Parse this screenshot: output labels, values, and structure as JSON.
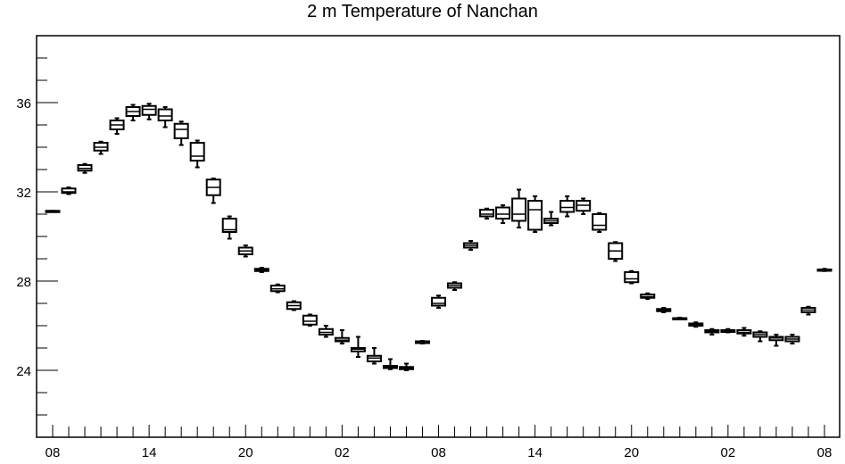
{
  "chart_data": {
    "type": "boxplot",
    "title": "2 m Temperature of Nanchan",
    "xlabel": "",
    "ylabel": "",
    "ylim": [
      21,
      39
    ],
    "y_ticks": [
      24,
      28,
      32,
      36
    ],
    "y_tick_labels": [
      "24",
      "28",
      "32",
      "36"
    ],
    "x_tick_labels": [
      "08",
      "14",
      "20",
      "02",
      "08",
      "14",
      "20",
      "02",
      "08"
    ],
    "x_tick_hours": [
      0,
      6,
      12,
      18,
      24,
      30,
      36,
      42,
      48
    ],
    "grid": false,
    "series": [
      {
        "boxes": [
          {
            "hour": 0,
            "low": 31.1,
            "q1": 31.1,
            "median": 31.1,
            "q3": 31.15,
            "high": 31.15
          },
          {
            "hour": 1,
            "low": 31.9,
            "q1": 31.95,
            "median": 32.0,
            "q3": 32.15,
            "high": 32.2
          },
          {
            "hour": 2,
            "low": 32.85,
            "q1": 32.95,
            "median": 33.05,
            "q3": 33.2,
            "high": 33.25
          },
          {
            "hour": 3,
            "low": 33.7,
            "q1": 33.85,
            "median": 34.0,
            "q3": 34.2,
            "high": 34.25
          },
          {
            "hour": 4,
            "low": 34.6,
            "q1": 34.8,
            "median": 35.0,
            "q3": 35.2,
            "high": 35.3
          },
          {
            "hour": 5,
            "low": 35.2,
            "q1": 35.4,
            "median": 35.6,
            "q3": 35.8,
            "high": 35.9
          },
          {
            "hour": 6,
            "low": 35.25,
            "q1": 35.45,
            "median": 35.7,
            "q3": 35.85,
            "high": 35.95
          },
          {
            "hour": 7,
            "low": 34.9,
            "q1": 35.2,
            "median": 35.4,
            "q3": 35.7,
            "high": 35.8
          },
          {
            "hour": 8,
            "low": 34.1,
            "q1": 34.4,
            "median": 34.8,
            "q3": 35.05,
            "high": 35.15
          },
          {
            "hour": 9,
            "low": 33.1,
            "q1": 33.4,
            "median": 33.6,
            "q3": 34.2,
            "high": 34.3
          },
          {
            "hour": 10,
            "low": 31.5,
            "q1": 31.85,
            "median": 32.2,
            "q3": 32.55,
            "high": 32.6
          },
          {
            "hour": 11,
            "low": 29.9,
            "q1": 30.2,
            "median": 30.3,
            "q3": 30.8,
            "high": 30.9
          },
          {
            "hour": 12,
            "low": 29.1,
            "q1": 29.2,
            "median": 29.35,
            "q3": 29.5,
            "high": 29.6
          },
          {
            "hour": 13,
            "low": 28.4,
            "q1": 28.45,
            "median": 28.5,
            "q3": 28.55,
            "high": 28.6
          },
          {
            "hour": 14,
            "low": 27.5,
            "q1": 27.55,
            "median": 27.65,
            "q3": 27.8,
            "high": 27.85
          },
          {
            "hour": 15,
            "low": 26.7,
            "q1": 26.75,
            "median": 26.9,
            "q3": 27.05,
            "high": 27.1
          },
          {
            "hour": 16,
            "low": 26.0,
            "q1": 26.05,
            "median": 26.2,
            "q3": 26.45,
            "high": 26.5
          },
          {
            "hour": 17,
            "low": 25.5,
            "q1": 25.6,
            "median": 25.7,
            "q3": 25.85,
            "high": 26.0
          },
          {
            "hour": 18,
            "low": 25.2,
            "q1": 25.3,
            "median": 25.35,
            "q3": 25.45,
            "high": 25.8
          },
          {
            "hour": 19,
            "low": 24.6,
            "q1": 24.85,
            "median": 24.95,
            "q3": 25.0,
            "high": 25.5
          },
          {
            "hour": 20,
            "low": 24.3,
            "q1": 24.4,
            "median": 24.55,
            "q3": 24.65,
            "high": 25.0
          },
          {
            "hour": 21,
            "low": 24.05,
            "q1": 24.1,
            "median": 24.15,
            "q3": 24.2,
            "high": 24.5
          },
          {
            "hour": 22,
            "low": 24.0,
            "q1": 24.05,
            "median": 24.1,
            "q3": 24.15,
            "high": 24.3
          },
          {
            "hour": 23,
            "low": 25.2,
            "q1": 25.22,
            "median": 25.25,
            "q3": 25.3,
            "high": 25.32
          },
          {
            "hour": 24,
            "low": 26.8,
            "q1": 26.9,
            "median": 27.0,
            "q3": 27.25,
            "high": 27.35
          },
          {
            "hour": 25,
            "low": 27.6,
            "q1": 27.7,
            "median": 27.8,
            "q3": 27.9,
            "high": 27.95
          },
          {
            "hour": 26,
            "low": 29.4,
            "q1": 29.5,
            "median": 29.6,
            "q3": 29.7,
            "high": 29.8
          },
          {
            "hour": 27,
            "low": 30.8,
            "q1": 30.9,
            "median": 31.0,
            "q3": 31.2,
            "high": 31.25
          },
          {
            "hour": 28,
            "low": 30.6,
            "q1": 30.8,
            "median": 31.0,
            "q3": 31.3,
            "high": 31.4
          },
          {
            "hour": 29,
            "low": 30.4,
            "q1": 30.7,
            "median": 31.0,
            "q3": 31.7,
            "high": 32.1
          },
          {
            "hour": 30,
            "low": 30.2,
            "q1": 30.3,
            "median": 31.2,
            "q3": 31.6,
            "high": 31.8
          },
          {
            "hour": 31,
            "low": 30.5,
            "q1": 30.6,
            "median": 30.7,
            "q3": 30.8,
            "high": 31.1
          },
          {
            "hour": 32,
            "low": 30.9,
            "q1": 31.1,
            "median": 31.3,
            "q3": 31.6,
            "high": 31.8
          },
          {
            "hour": 33,
            "low": 31.0,
            "q1": 31.15,
            "median": 31.4,
            "q3": 31.6,
            "high": 31.7
          },
          {
            "hour": 34,
            "low": 30.2,
            "q1": 30.3,
            "median": 30.5,
            "q3": 31.0,
            "high": 31.05
          },
          {
            "hour": 35,
            "low": 28.9,
            "q1": 29.0,
            "median": 29.35,
            "q3": 29.7,
            "high": 29.75
          },
          {
            "hour": 36,
            "low": 27.9,
            "q1": 27.95,
            "median": 28.1,
            "q3": 28.4,
            "high": 28.45
          },
          {
            "hour": 37,
            "low": 27.2,
            "q1": 27.25,
            "median": 27.3,
            "q3": 27.4,
            "high": 27.45
          },
          {
            "hour": 38,
            "low": 26.6,
            "q1": 26.65,
            "median": 26.7,
            "q3": 26.75,
            "high": 26.8
          },
          {
            "hour": 39,
            "low": 26.28,
            "q1": 26.3,
            "median": 26.32,
            "q3": 26.34,
            "high": 26.36
          },
          {
            "hour": 40,
            "low": 25.95,
            "q1": 26.0,
            "median": 26.05,
            "q3": 26.1,
            "high": 26.15
          },
          {
            "hour": 41,
            "low": 25.6,
            "q1": 25.7,
            "median": 25.75,
            "q3": 25.8,
            "high": 25.85
          },
          {
            "hour": 42,
            "low": 25.7,
            "q1": 25.72,
            "median": 25.75,
            "q3": 25.8,
            "high": 25.85
          },
          {
            "hour": 43,
            "low": 25.55,
            "q1": 25.65,
            "median": 25.7,
            "q3": 25.8,
            "high": 25.9
          },
          {
            "hour": 44,
            "low": 25.3,
            "q1": 25.5,
            "median": 25.6,
            "q3": 25.7,
            "high": 25.75
          },
          {
            "hour": 45,
            "low": 25.1,
            "q1": 25.35,
            "median": 25.45,
            "q3": 25.5,
            "high": 25.6
          },
          {
            "hour": 46,
            "low": 25.2,
            "q1": 25.3,
            "median": 25.4,
            "q3": 25.5,
            "high": 25.6
          },
          {
            "hour": 47,
            "low": 26.5,
            "q1": 26.6,
            "median": 26.7,
            "q3": 26.8,
            "high": 26.85
          },
          {
            "hour": 48,
            "low": 28.45,
            "q1": 28.47,
            "median": 28.5,
            "q3": 28.52,
            "high": 28.55
          }
        ]
      }
    ]
  }
}
